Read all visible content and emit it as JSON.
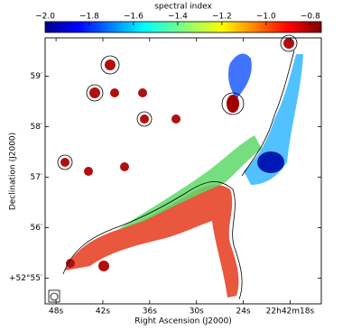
{
  "chart_data": {
    "type": "image",
    "colorbar": {
      "label": "spectral index",
      "lim": [
        -2.0,
        -0.75
      ],
      "ticks": [
        {
          "value": -2.0,
          "label": "−2.0"
        },
        {
          "value": -1.8,
          "label": "−1.8"
        },
        {
          "value": -1.6,
          "label": "−1.6"
        },
        {
          "value": -1.4,
          "label": "−1.4"
        },
        {
          "value": -1.2,
          "label": "−1.2"
        },
        {
          "value": -1.0,
          "label": "−1.0"
        },
        {
          "value": -0.8,
          "label": "−0.8"
        }
      ]
    },
    "xlabel": "Right Ascension (J2000)",
    "ylabel": "Declination (J2000)",
    "xlim": [
      49.4,
      14.0
    ],
    "xticks": [
      {
        "value": 48,
        "label": "48s"
      },
      {
        "value": 42,
        "label": "42s"
      },
      {
        "value": 36,
        "label": "36s"
      },
      {
        "value": 30,
        "label": "30s"
      },
      {
        "value": 24,
        "label": "24s"
      },
      {
        "value": 18,
        "label": "22h42m18s"
      }
    ],
    "ylim": [
      54.49,
      59.76
    ],
    "yticks": [
      {
        "value": 55,
        "label": "+52°55′"
      },
      {
        "value": 56,
        "label": "56′"
      },
      {
        "value": 57,
        "label": "57′"
      },
      {
        "value": 58,
        "label": "58′"
      },
      {
        "value": 59,
        "label": "59′"
      }
    ]
  }
}
